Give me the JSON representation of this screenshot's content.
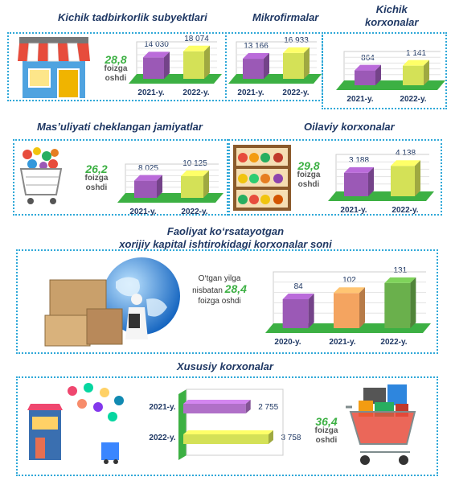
{
  "sections": {
    "kichik_tadbirkorlik": {
      "title": "Kichik tadbirkorlik subyektlari",
      "growth_value": "28,8",
      "growth_text": "foizga oshdi"
    },
    "mikrofirmalar": {
      "title": "Mikrofirmalar"
    },
    "kichik_korxonalar": {
      "title_line1": "Kichik",
      "title_line2": "korxonalar"
    },
    "mchj": {
      "title": "Mas’uliyati cheklangan jamiyatlar",
      "growth_value": "26,2",
      "growth_text": "foizga oshdi"
    },
    "oilaviy": {
      "title": "Oilaviy korxonalar",
      "growth_value": "29,8",
      "growth_text": "foizga oshdi"
    },
    "xorijiy": {
      "title_line1": "Faoliyat ko‘rsatayotgan",
      "title_line2": "xorijiy kapital ishtirokidagi korxonalar soni",
      "note_line1": "O‘tgan yilga",
      "note_prefix": "nisbatan",
      "growth_value": "28,4",
      "note_line3": "foizga oshdi"
    },
    "xususiy": {
      "title": "Xususiy korxonalar",
      "growth_value": "36,4",
      "growth_text": "foizga oshdi"
    }
  },
  "chart_data": [
    {
      "id": "kichik_tadbirkorlik",
      "type": "bar",
      "categories": [
        "2021-y.",
        "2022-y."
      ],
      "values": [
        14030,
        18074
      ],
      "value_labels": [
        "14 030",
        "18 074"
      ],
      "colors": [
        "#9b59b6",
        "#d4e157"
      ]
    },
    {
      "id": "mikrofirmalar",
      "type": "bar",
      "categories": [
        "2021-y.",
        "2022-y."
      ],
      "values": [
        13166,
        16933
      ],
      "value_labels": [
        "13 166",
        "16 933"
      ],
      "colors": [
        "#9b59b6",
        "#d4e157"
      ]
    },
    {
      "id": "kichik_korxonalar",
      "type": "bar",
      "categories": [
        "2021-y.",
        "2022-y."
      ],
      "values": [
        864,
        1141
      ],
      "value_labels": [
        "864",
        "1 141"
      ],
      "colors": [
        "#9b59b6",
        "#d4e157"
      ]
    },
    {
      "id": "mchj",
      "type": "bar",
      "categories": [
        "2021-y.",
        "2022-y."
      ],
      "values": [
        8025,
        10125
      ],
      "value_labels": [
        "8 025",
        "10 125"
      ],
      "colors": [
        "#9b59b6",
        "#d4e157"
      ]
    },
    {
      "id": "oilaviy",
      "type": "bar",
      "categories": [
        "2021-y.",
        "2022-y."
      ],
      "values": [
        3188,
        4138
      ],
      "value_labels": [
        "3 188",
        "4 138"
      ],
      "colors": [
        "#9b59b6",
        "#d4e157"
      ]
    },
    {
      "id": "xorijiy",
      "type": "bar",
      "categories": [
        "2020-y.",
        "2021-y.",
        "2022-y."
      ],
      "values": [
        84,
        102,
        131
      ],
      "value_labels": [
        "84",
        "102",
        "131"
      ],
      "colors": [
        "#9b59b6",
        "#f4a460",
        "#6ab04c"
      ]
    },
    {
      "id": "xususiy",
      "type": "bar",
      "orientation": "horizontal",
      "categories": [
        "2021-y.",
        "2022-y."
      ],
      "values": [
        2755,
        3758
      ],
      "value_labels": [
        "2 755",
        "3 758"
      ],
      "colors": [
        "#b070c8",
        "#d4e157"
      ]
    }
  ],
  "colors": {
    "title": "#1f3864",
    "growth": "#3cb043",
    "border": "#2fa8d8",
    "floor": "#3cb043"
  }
}
